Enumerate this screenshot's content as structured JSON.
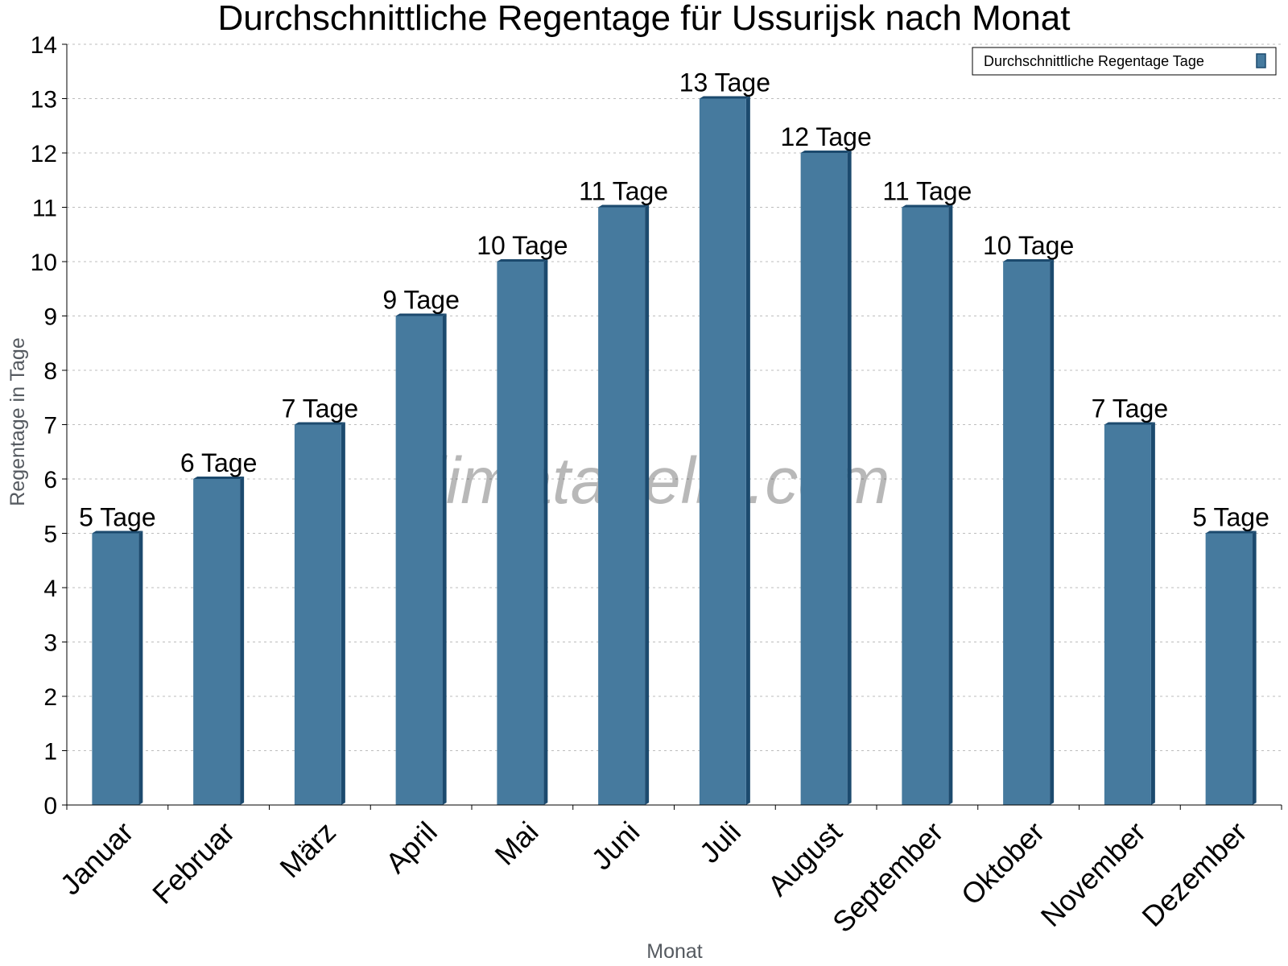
{
  "chart_data": {
    "type": "bar",
    "title": "Durchschnittliche Regentage für Ussurijsk nach Monat",
    "xlabel": "Monat",
    "ylabel": "Regentage in Tage",
    "ylim": [
      0,
      14
    ],
    "yticks": [
      "0",
      "1",
      "2",
      "3",
      "4",
      "5",
      "6",
      "7",
      "8",
      "9",
      "10",
      "11",
      "12",
      "13",
      "14"
    ],
    "grid": true,
    "legend_position": "top-right",
    "categories": [
      "Januar",
      "Februar",
      "März",
      "April",
      "Mai",
      "Juni",
      "Juli",
      "August",
      "September",
      "Oktober",
      "November",
      "Dezember"
    ],
    "series": [
      {
        "name": "Durchschnittliche Regentage Tage",
        "color": "#467a9e",
        "values": [
          5,
          6,
          7,
          9,
          10,
          11,
          13,
          12,
          11,
          10,
          7,
          5
        ],
        "labels": [
          "5 Tage",
          "6 Tage",
          "7 Tage",
          "9 Tage",
          "10 Tage",
          "11 Tage",
          "13 Tage",
          "12 Tage",
          "11 Tage",
          "10 Tage",
          "7 Tage",
          "5 Tage"
        ]
      }
    ],
    "watermark": "klimatabelle.com"
  }
}
